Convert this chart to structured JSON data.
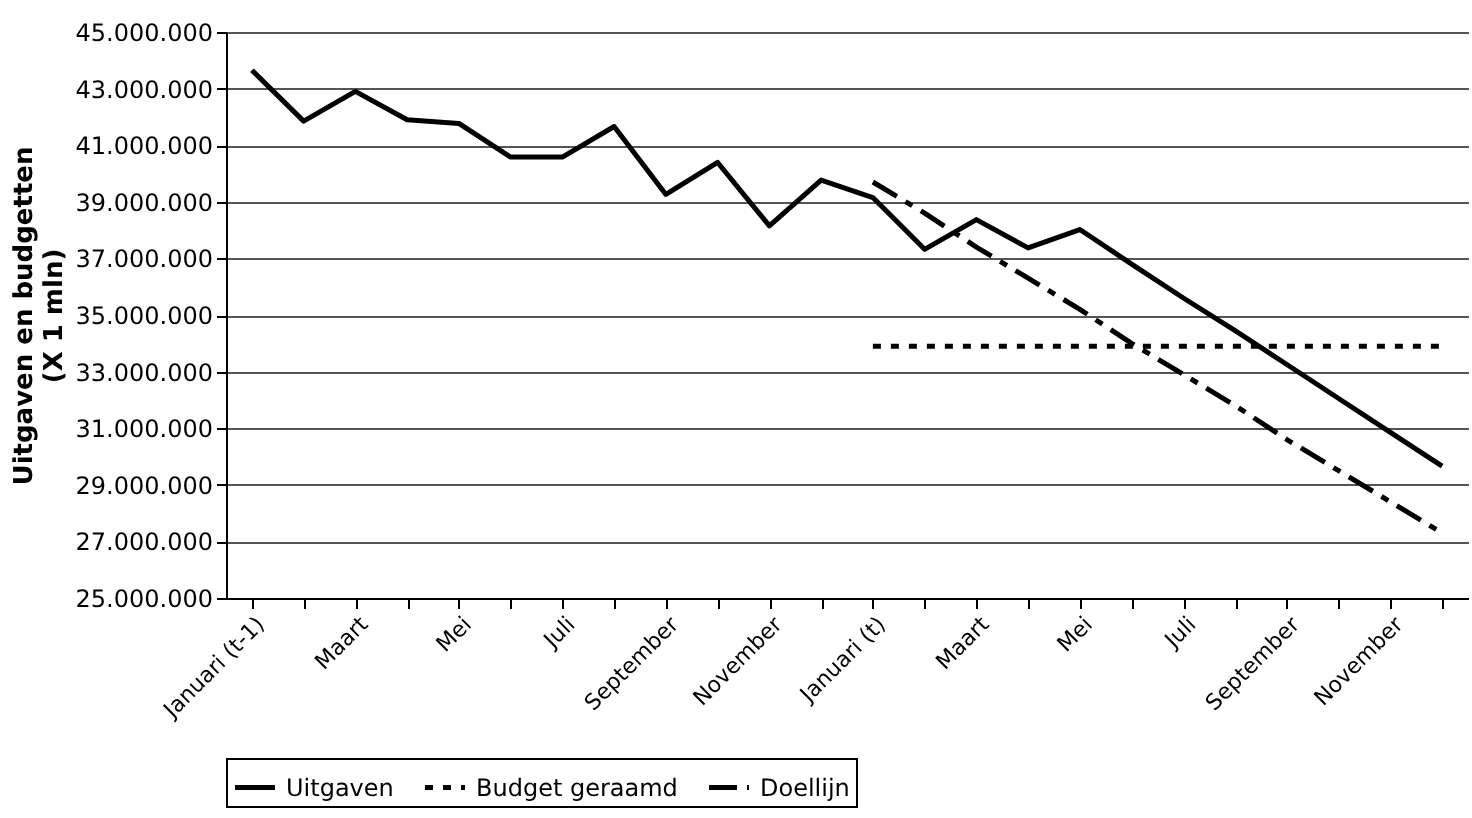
{
  "chart_data": {
    "type": "line",
    "ylabel": "Uitgaven en budgetten\n(X 1 mln)",
    "categories": [
      "Januari (t-1)",
      null,
      "Maart",
      null,
      "Mei",
      null,
      "Juli",
      null,
      "September",
      null,
      "November",
      null,
      "Januari (t)",
      null,
      "Maart",
      null,
      "Mei",
      null,
      "Juli",
      null,
      "September",
      null,
      "November",
      null
    ],
    "series": [
      {
        "name": "Uitgaven",
        "color": "#000000",
        "line_style": "solid",
        "values": [
          43650000,
          41850000,
          42900000,
          41900000,
          41770000,
          40580000,
          40580000,
          41660000,
          39260000,
          40390000,
          38150000,
          39770000,
          39150000,
          37320000,
          38370000,
          37370000,
          38020000,
          36800000,
          35600000,
          34450000,
          33250000,
          32050000,
          30850000,
          29660000
        ]
      },
      {
        "name": "Budget geraamd",
        "color": "#000000",
        "line_style": "dotted",
        "values": [
          null,
          null,
          null,
          null,
          null,
          null,
          null,
          null,
          null,
          null,
          null,
          null,
          33900000,
          33900000,
          33900000,
          33900000,
          33900000,
          33900000,
          33900000,
          33900000,
          33900000,
          33900000,
          33900000,
          33900000
        ]
      },
      {
        "name": "Doellijn",
        "color": "#000000",
        "line_style": "dashed",
        "values": [
          null,
          null,
          null,
          null,
          null,
          null,
          null,
          null,
          null,
          null,
          null,
          null,
          39700000,
          38600000,
          37400000,
          36300000,
          35200000,
          34000000,
          32900000,
          31800000,
          30600000,
          29500000,
          28400000,
          27300000
        ]
      }
    ],
    "ylim": [
      25000000,
      45000000
    ],
    "yticks": [
      {
        "value": 25000000,
        "label": "25.000.000"
      },
      {
        "value": 27000000,
        "label": "27.000.000"
      },
      {
        "value": 29000000,
        "label": "29.000.000"
      },
      {
        "value": 31000000,
        "label": "31.000.000"
      },
      {
        "value": 33000000,
        "label": "33.000.000"
      },
      {
        "value": 35000000,
        "label": "35.000.000"
      },
      {
        "value": 37000000,
        "label": "37.000.000"
      },
      {
        "value": 39000000,
        "label": "39.000.000"
      },
      {
        "value": 41000000,
        "label": "41.000.000"
      },
      {
        "value": 43000000,
        "label": "43.000.000"
      },
      {
        "value": 45000000,
        "label": "45.000.000"
      }
    ],
    "grid": "y",
    "legend": "bottom",
    "marker": "none"
  }
}
